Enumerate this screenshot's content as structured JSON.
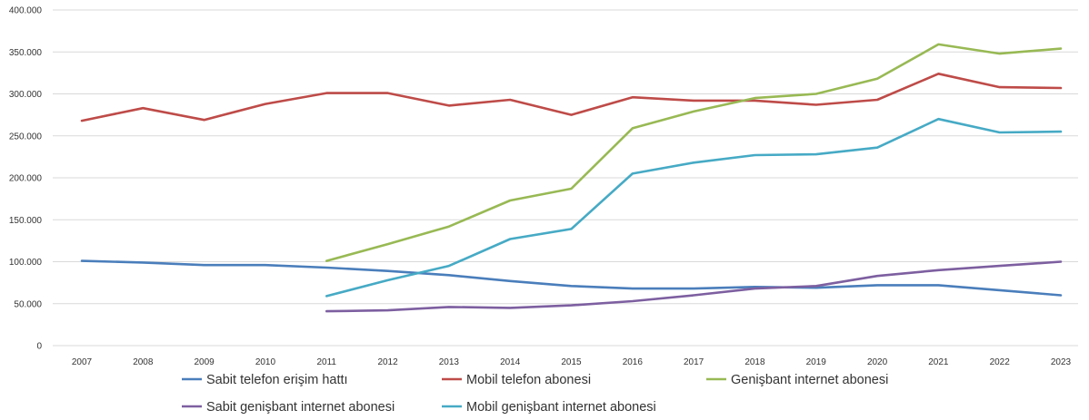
{
  "chart_data": {
    "type": "line",
    "title": "",
    "xlabel": "",
    "ylabel": "",
    "ylim": [
      0,
      400000
    ],
    "grid": true,
    "legend_position": "bottom",
    "x": [
      "2007",
      "2008",
      "2009",
      "2010",
      "2011",
      "2012",
      "2013",
      "2014",
      "2015",
      "2016",
      "2017",
      "2018",
      "2019",
      "2020",
      "2021",
      "2022",
      "2023"
    ],
    "y_ticks": [
      {
        "value": 0,
        "label": "0"
      },
      {
        "value": 50000,
        "label": "50.000"
      },
      {
        "value": 100000,
        "label": "100.000"
      },
      {
        "value": 150000,
        "label": "150.000"
      },
      {
        "value": 200000,
        "label": "200.000"
      },
      {
        "value": 250000,
        "label": "250.000"
      },
      {
        "value": 300000,
        "label": "300.000"
      },
      {
        "value": 350000,
        "label": "350.000"
      },
      {
        "value": 400000,
        "label": "400.000"
      }
    ],
    "series": [
      {
        "name": "Sabit telefon erişim hattı",
        "color": "#4a7ebb",
        "values": [
          101000,
          99000,
          96000,
          96000,
          93000,
          89000,
          84000,
          77000,
          71000,
          68000,
          68000,
          70000,
          69000,
          72000,
          72000,
          66000,
          60000
        ]
      },
      {
        "name": "Mobil telefon abonesi",
        "color": "#be4b48",
        "values": [
          268000,
          283000,
          269000,
          288000,
          301000,
          301000,
          286000,
          293000,
          275000,
          296000,
          292000,
          292000,
          287000,
          293000,
          324000,
          308000,
          307000
        ]
      },
      {
        "name": "Genişbant internet abonesi",
        "color": "#98b954",
        "values": [
          null,
          null,
          null,
          null,
          101000,
          121000,
          142000,
          173000,
          187000,
          259000,
          279000,
          295000,
          300000,
          318000,
          359000,
          348000,
          354000
        ]
      },
      {
        "name": "Sabit genişbant internet abonesi",
        "color": "#7d5fa0",
        "values": [
          null,
          null,
          null,
          null,
          41000,
          42000,
          46000,
          45000,
          48000,
          53000,
          60000,
          68000,
          71000,
          83000,
          90000,
          95000,
          100000
        ]
      },
      {
        "name": "Mobil genişbant internet abonesi",
        "color": "#46aac5",
        "values": [
          null,
          null,
          null,
          null,
          59000,
          78000,
          95000,
          127000,
          139000,
          205000,
          218000,
          227000,
          228000,
          236000,
          270000,
          254000,
          255000
        ]
      }
    ]
  }
}
